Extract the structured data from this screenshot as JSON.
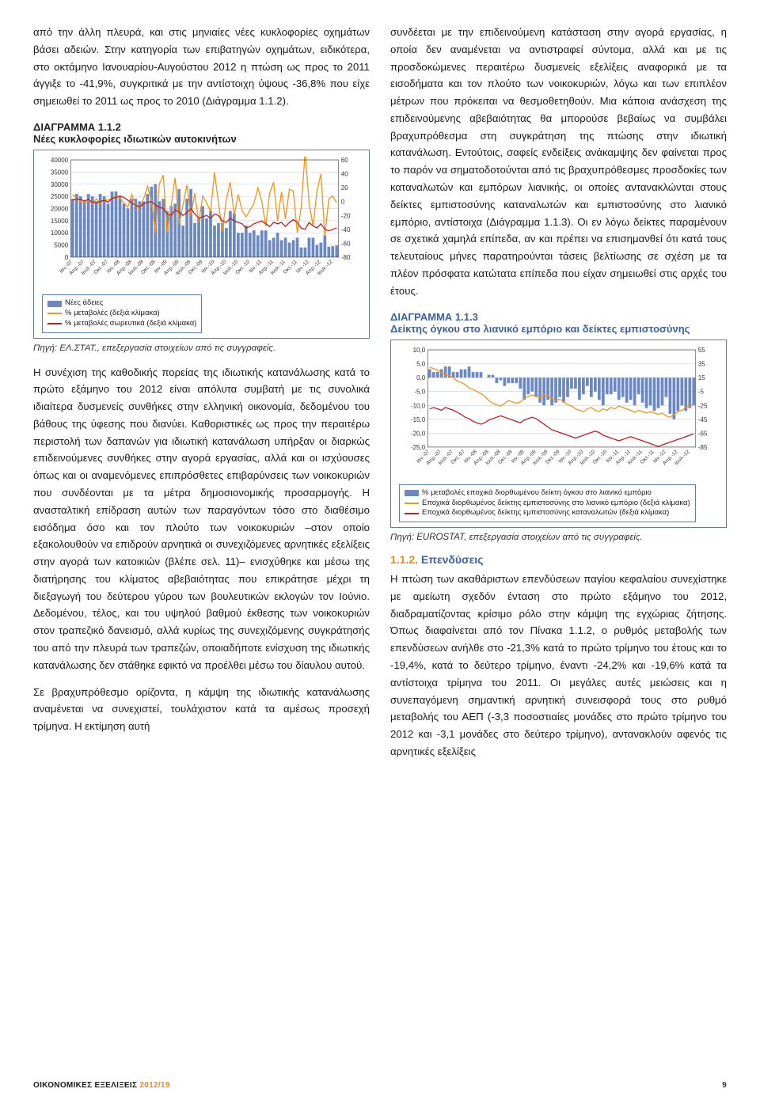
{
  "left": {
    "para1": "από την άλλη πλευρά, και στις μηνιαίες νέες κυκλοφορίες οχημάτων βάσει αδειών. Στην κατηγορία των επιβατηγών οχημάτων, ειδικότερα, στο οκτάμηνο Ιανουαρίου-Αυγούστου 2012 η πτώση ως προς το 2011 άγγιξε το -41,9%, συγκριτικά με την αντίστοιχη ύψους -36,8% που είχε σημειωθεί το 2011 ως προς το 2010 (Διάγραμμα 1.1.2).",
    "chart112": {
      "label": "ΔΙΑΓΡΑΜΜΑ 1.1.2",
      "subtitle": "Νέες κυκλοφορίες ιδιωτικών αυτοκινήτων",
      "type": "combo-bar-line",
      "y_left": {
        "min": 0,
        "max": 40000,
        "step": 5000
      },
      "y_right": {
        "min": -80,
        "max": 60,
        "step": 20
      },
      "x_labels": [
        "Ιαν.-07",
        "Απρ.-07",
        "Ιουλ.-07",
        "Οκτ.-07",
        "Ιαν.-08",
        "Απρ.-08",
        "Ιουλ.-08",
        "Οκτ.-08",
        "Ιαν.-09",
        "Απρ.-09",
        "Ιουλ.-09",
        "Οκτ.-09",
        "Ιαν.-10",
        "Απρ.-10",
        "Ιουλ.-10",
        "Οκτ.-10",
        "Ιαν.-11",
        "Απρ.-11",
        "Ιουλ.-11",
        "Οκτ.-11",
        "Ιαν.-12",
        "Απρ.-12",
        "Ιουλ.-12"
      ],
      "bars": [
        24000,
        26000,
        25000,
        23000,
        26000,
        25000,
        23000,
        26000,
        25000,
        22000,
        27000,
        27000,
        25000,
        22000,
        20000,
        24000,
        24000,
        23000,
        23000,
        26000,
        29000,
        30000,
        23000,
        24000,
        19000,
        21000,
        22000,
        28000,
        13000,
        24000,
        28000,
        14000,
        16000,
        21000,
        16000,
        19000,
        13000,
        14000,
        14000,
        12000,
        19000,
        18000,
        10000,
        10000,
        13000,
        10000,
        11000,
        9000,
        11000,
        11000,
        7000,
        8000,
        10000,
        7000,
        8000,
        6000,
        7000,
        8000,
        4000,
        4000,
        8000,
        8000,
        5000,
        6000,
        9000,
        4300,
        4500,
        4800
      ],
      "bar_color": "#6b88c2",
      "line_orange": [
        10,
        5,
        0,
        -2,
        2,
        -3,
        4,
        -2,
        3,
        2,
        5,
        8,
        5,
        -2,
        -8,
        10,
        -5,
        -10,
        4,
        22,
        2,
        -45,
        25,
        38,
        -45,
        -5,
        34,
        -33,
        -5,
        24,
        -20,
        12,
        -30,
        8,
        -2,
        -14,
        42,
        -2,
        -43,
        3,
        28,
        -20,
        10,
        -13,
        -22,
        -12,
        -3,
        20,
        0,
        -35,
        12,
        28,
        -28,
        14,
        -25,
        18,
        15,
        -45,
        -8,
        72,
        -2,
        -35,
        15,
        40,
        -50,
        4,
        8,
        -2
      ],
      "line_red": [
        2,
        4,
        3,
        1,
        3,
        -1,
        -2,
        0,
        2,
        -1,
        5,
        6,
        8,
        6,
        2,
        -2,
        -5,
        -8,
        -3,
        -1,
        0,
        -5,
        -8,
        -10,
        -18,
        -20,
        -12,
        -15,
        -20,
        -16,
        -10,
        -18,
        -24,
        -22,
        -20,
        -24,
        -18,
        -20,
        -28,
        -30,
        -24,
        -28,
        -30,
        -32,
        -38,
        -36,
        -32,
        -30,
        -28,
        -32,
        -36,
        -30,
        -32,
        -30,
        -36,
        -30,
        -26,
        -30,
        -38,
        -40,
        -30,
        -35,
        -38,
        -32,
        -40,
        -42,
        -40,
        -38
      ],
      "line_orange_color": "#f2941a",
      "line_red_color": "#c41e1e",
      "grid_color": "#b8c4dd",
      "legend": {
        "bar": "Νέες άδειες",
        "orange": "% μεταβολές (δεξιά κλίμακα)",
        "red": "% μεταβολές σωρευτικά (δεξιά κλίμακα)"
      },
      "source": "Πηγή: ΕΛ.ΣΤΑΤ., επεξεργασία στοιχείων από τις συγγραφείς."
    },
    "para2": "Η συνέχιση της καθοδικής πορείας της ιδιωτικής κατανάλωσης κατά το πρώτο εξάμηνο του 2012 είναι απόλυτα συμβατή με τις συνολικά ιδιαίτερα δυσμενείς συνθήκες στην ελληνική οικονομία, δεδομένου του βάθους της ύφεσης που διανύει. Καθοριστικές ως προς την περαιτέρω περιστολή των δαπανών για ιδιωτική κατανάλωση υπήρξαν οι διαρκώς επιδεινούμενες συνθήκες στην αγορά εργασίας, αλλά και οι ισχύουσες όπως και οι αναμενόμενες επιπρόσθετες επιβαρύνσεις των νοικοκυριών που συνδέονται με τα μέτρα δημοσιονομικής προσαρμογής. Η ανασταλτική επίδραση αυτών των παραγόντων τόσο στο διαθέσιμο εισόδημα όσο και τον πλούτο των νοικοκυριών –στον οποίο εξακολουθούν να επιδρούν αρνητικά οι συνεχιζόμενες αρνητικές εξελίξεις στην αγορά των κατοικιών (βλέπε σελ. 11)– ενισχύθηκε και μέσω της διατήρησης του κλίματος αβεβαιότητας που επικράτησε μέχρι τη διεξαγωγή του δεύτερου γύρου των βουλευτικών εκλογών τον Ιούνιο. Δεδομένου, τέλος, και του υψηλού βαθμού έκθεσης των νοικοκυριών στον τραπεζικό δανεισμό, αλλά κυρίως της συνεχιζόμενης συγκράτησής του από την πλευρά των τραπεζών, οποιαδήποτε ενίσχυση της ιδιωτικής κατανάλωσης δεν στάθηκε εφικτό να προέλθει μέσω του δίαυλου αυτού.",
    "para3": "Σε βραχυπρόθεσμο ορίζοντα, η κάμψη της ιδιωτικής κατανάλωσης αναμένεται να συνεχιστεί, τουλάχιστον κατά τα αμέσως προσεχή τρίμηνα. Η εκτίμηση αυτή"
  },
  "right": {
    "para1": "συνδέεται με την επιδεινούμενη κατάσταση στην αγορά εργασίας, η οποία δεν αναμένεται να αντιστραφεί σύντομα, αλλά και με τις προσδοκώμενες περαιτέρω δυσμενείς εξελίξεις αναφορικά με τα εισοδήματα και τον πλούτο των νοικοκυριών, λόγω και των επιπλέον μέτρων που πρόκειται να θεσμοθετηθούν. Μια κάποια ανάσχεση της επιδεινούμενης αβεβαιότητας θα μπορούσε βεβαίως να συμβάλει βραχυπρόθεσμα στη συγκράτηση της πτώσης στην ιδιωτική κατανάλωση. Εντούτοις, σαφείς ενδείξεις ανάκαμψης δεν φαίνεται προς το παρόν να σηματοδοτούνται από τις βραχυπρόθεσμες προσδοκίες των καταναλωτών και εμπόρων λιανικής, οι οποίες αντανακλώνται στους δείκτες εμπιστοσύνης καταναλωτών και εμπιστοσύνης στο λιανικό εμπόριο, αντίστοιχα (Διάγραμμα 1.1.3). Οι εν λόγω δείκτες παραμένουν σε σχετικά χαμηλά επίπεδα, αν και πρέπει να επισημανθεί ότι κατά τους τελευταίους μήνες παρατηρούνται τάσεις βελτίωσης σε σχέση με τα πλέον πρόσφατα κατώτατα επίπεδα που είχαν σημειωθεί στις αρχές του έτους.",
    "chart113": {
      "label": "ΔΙΑΓΡΑΜΜΑ 1.1.3",
      "subtitle": "Δείκτης όγκου στο λιανικό εμπόριο και δείκτες εμπιστοσύνης",
      "type": "combo-bar-line",
      "y_left": {
        "min": -25,
        "max": 10,
        "step": 5
      },
      "y_right": {
        "min": -85,
        "max": 55,
        "step": 20
      },
      "x_labels": [
        "Ιαν.-07",
        "Απρ.-07",
        "Ιουλ.-07",
        "Οκτ.-07",
        "Ιαν.-08",
        "Απρ.-08",
        "Ιουλ.-08",
        "Οκτ.-08",
        "Ιαν.-09",
        "Απρ.-09",
        "Ιουλ.-09",
        "Οκτ.-09",
        "Ιαν.-10",
        "Απρ.-10",
        "Ιουλ.-10",
        "Οκτ.-10",
        "Ιαν.-11",
        "Απρ.-11",
        "Ιουλ.-11",
        "Οκτ.-11",
        "Ιαν.-12",
        "Απρ.-12",
        "Ιουλ.-12"
      ],
      "bars": [
        3,
        2,
        2,
        3,
        4,
        4,
        2,
        2,
        3,
        3,
        4,
        2,
        2,
        2,
        0,
        1,
        1,
        -2,
        -1,
        -3,
        -2,
        -2,
        -2,
        -4,
        -8,
        -6,
        -5,
        -7,
        -9,
        -10,
        -8,
        -10,
        -9,
        -7,
        -9,
        -7,
        -4,
        -4,
        -8,
        -6,
        -3,
        -7,
        -5,
        -8,
        -10,
        -6,
        -6,
        -5,
        -8,
        -7,
        -9,
        -8,
        -10,
        -6,
        -9,
        -11,
        -10,
        -12,
        -11,
        -10,
        -7,
        -13,
        -15,
        -12,
        -10,
        -12,
        -11,
        -10
      ],
      "bar_color": "#6b88c2",
      "line_orange": [
        30,
        28,
        26,
        22,
        20,
        18,
        15,
        10,
        8,
        5,
        0,
        -2,
        -5,
        -8,
        -12,
        -18,
        -22,
        -24,
        -26,
        -22,
        -18,
        -20,
        -22,
        -20,
        -15,
        -12,
        -10,
        -12,
        -14,
        -10,
        -12,
        -15,
        -18,
        -16,
        -20,
        -24,
        -26,
        -30,
        -32,
        -34,
        -30,
        -28,
        -32,
        -34,
        -30,
        -32,
        -28,
        -30,
        -26,
        -28,
        -30,
        -32,
        -35,
        -32,
        -34,
        -36,
        -34,
        -36,
        -38,
        -36,
        -40,
        -42,
        -38,
        -34,
        -32,
        -28,
        -26,
        -24
      ],
      "line_red": [
        -30,
        -28,
        -30,
        -32,
        -28,
        -30,
        -32,
        -35,
        -38,
        -42,
        -44,
        -48,
        -50,
        -52,
        -50,
        -46,
        -44,
        -42,
        -40,
        -42,
        -44,
        -46,
        -48,
        -50,
        -46,
        -44,
        -42,
        -44,
        -48,
        -52,
        -56,
        -60,
        -62,
        -64,
        -66,
        -68,
        -70,
        -72,
        -70,
        -68,
        -66,
        -64,
        -62,
        -64,
        -68,
        -70,
        -72,
        -74,
        -76,
        -74,
        -72,
        -70,
        -72,
        -74,
        -76,
        -78,
        -80,
        -82,
        -84,
        -82,
        -80,
        -78,
        -76,
        -74,
        -72,
        -70,
        -68,
        -66
      ],
      "line_orange_color": "#f2941a",
      "line_red_color": "#c41e1e",
      "grid_color": "#b8c4dd",
      "legend": {
        "bar": "% μεταβολές εποχικά διορθωμένου δείκτη όγκου στο λιανικό εμπόριο",
        "orange": "Εποχικά διορθωμένος δείκτης εμπιστοσύνης στο λιανικό εμπόριο (δεξιά κλίμακα)",
        "red": "Εποχικά διορθωμένος δείκτης εμπιστοσύνης καταναλωτών (δεξιά κλίμακα)"
      },
      "source": "Πηγή: EUROSTAT, επεξεργασία στοιχείων από τις συγγραφείς."
    },
    "section": "1.1.2. Επενδύσεις",
    "para2": "Η πτώση των ακαθάριστων επενδύσεων παγίου κεφαλαίου συνεχίστηκε με αμείωτη σχεδόν ένταση στο πρώτο εξάμηνο του 2012, διαδραματίζοντας κρίσιμο ρόλο στην κάμψη της εγχώριας ζήτησης. Όπως διαφαίνεται από τον Πίνακα 1.1.2, ο ρυθμός μεταβολής των επενδύσεων ανήλθε στο -21,3% κατά το πρώτο τρίμηνο του έτους και το -19,4%, κατά το δεύτερο τρίμηνο, έναντι -24,2% και -19,6% κατά τα αντίστοιχα τρίμηνα του 2011. Οι μεγάλες αυτές μειώσεις και η συνεπαγόμενη σημαντική αρνητική συνεισφορά τους στο ρυθμό μεταβολής του ΑΕΠ (-3,3 ποσοστιαίες μονάδες στο πρώτο τρίμηνο του 2012 και -3,1 μονάδες στο δεύτερο τρίμηνο), αντανακλούν αφενός τις αρνητικές εξελίξεις"
  },
  "footer": {
    "left_a": "ΟΙΚΟΝΟΜΙΚΕΣ ΕΞΕΛΙΞΕΙΣ",
    "left_b": "2012/19",
    "page": "9"
  }
}
